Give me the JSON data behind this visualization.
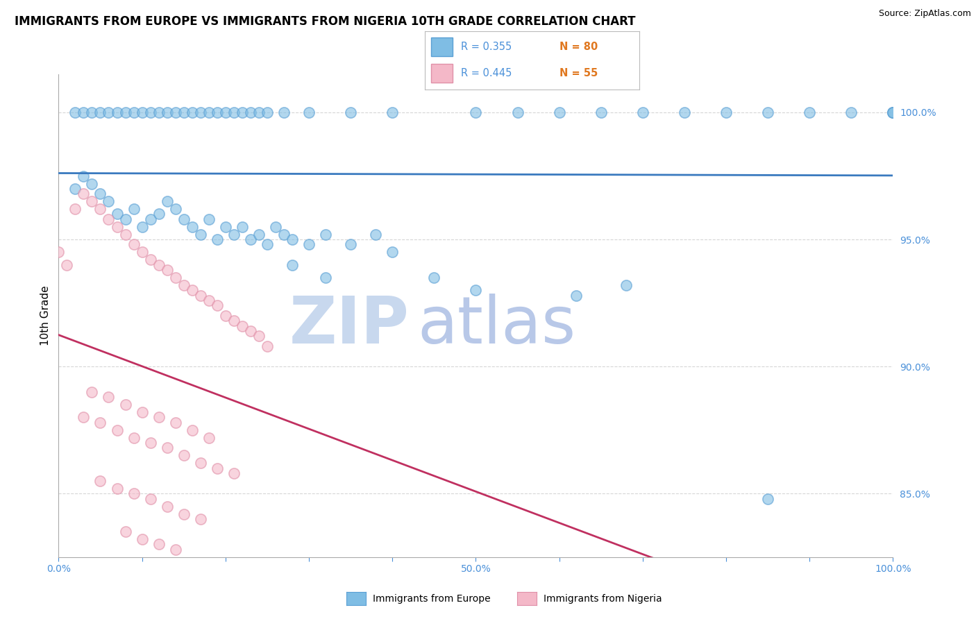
{
  "title": "IMMIGRANTS FROM EUROPE VS IMMIGRANTS FROM NIGERIA 10TH GRADE CORRELATION CHART",
  "source": "Source: ZipAtlas.com",
  "ylabel": "10th Grade",
  "right_ytick_labels": [
    "85.0%",
    "90.0%",
    "95.0%",
    "100.0%"
  ],
  "right_ytick_vals": [
    0.85,
    0.9,
    0.95,
    1.0
  ],
  "xlim": [
    0.0,
    1.0
  ],
  "ylim": [
    0.825,
    1.015
  ],
  "legend_blue_r": "R = 0.355",
  "legend_blue_n": "N = 80",
  "legend_pink_r": "R = 0.445",
  "legend_pink_n": "N = 55",
  "blue_color": "#7fbde4",
  "blue_edge_color": "#5a9fd4",
  "pink_color": "#f4b8c8",
  "pink_edge_color": "#e090a8",
  "trend_blue_color": "#3a7abf",
  "trend_pink_color": "#c03060",
  "watermark_zip": "ZIP",
  "watermark_atlas": "atlas",
  "watermark_color_zip": "#c8d8ee",
  "watermark_color_atlas": "#b8c8e8",
  "background_color": "#ffffff",
  "grid_color": "#cccccc",
  "axis_color": "#4a90d9",
  "orange_color": "#e07820",
  "title_fontsize": 12,
  "label_fontsize": 11,
  "tick_fontsize": 10,
  "blue_scatter_x": [
    0.02,
    0.03,
    0.04,
    0.05,
    0.06,
    0.07,
    0.08,
    0.09,
    0.1,
    0.11,
    0.12,
    0.13,
    0.14,
    0.15,
    0.16,
    0.17,
    0.18,
    0.19,
    0.2,
    0.21,
    0.22,
    0.23,
    0.24,
    0.25,
    0.26,
    0.27,
    0.28,
    0.3,
    0.32,
    0.35,
    0.38,
    0.4,
    0.02,
    0.03,
    0.04,
    0.05,
    0.06,
    0.07,
    0.08,
    0.09,
    0.1,
    0.11,
    0.12,
    0.13,
    0.14,
    0.15,
    0.16,
    0.17,
    0.18,
    0.19,
    0.2,
    0.21,
    0.22,
    0.23,
    0.24,
    0.25,
    0.27,
    0.3,
    0.35,
    0.4,
    0.5,
    0.55,
    0.6,
    0.65,
    0.7,
    0.75,
    0.8,
    0.85,
    0.9,
    0.95,
    1.0,
    1.0,
    1.0,
    0.28,
    0.32,
    0.45,
    0.5,
    0.62,
    0.68,
    0.85
  ],
  "blue_scatter_y": [
    0.97,
    0.975,
    0.972,
    0.968,
    0.965,
    0.96,
    0.958,
    0.962,
    0.955,
    0.958,
    0.96,
    0.965,
    0.962,
    0.958,
    0.955,
    0.952,
    0.958,
    0.95,
    0.955,
    0.952,
    0.955,
    0.95,
    0.952,
    0.948,
    0.955,
    0.952,
    0.95,
    0.948,
    0.952,
    0.948,
    0.952,
    0.945,
    1.0,
    1.0,
    1.0,
    1.0,
    1.0,
    1.0,
    1.0,
    1.0,
    1.0,
    1.0,
    1.0,
    1.0,
    1.0,
    1.0,
    1.0,
    1.0,
    1.0,
    1.0,
    1.0,
    1.0,
    1.0,
    1.0,
    1.0,
    1.0,
    1.0,
    1.0,
    1.0,
    1.0,
    1.0,
    1.0,
    1.0,
    1.0,
    1.0,
    1.0,
    1.0,
    1.0,
    1.0,
    1.0,
    1.0,
    1.0,
    1.0,
    0.94,
    0.935,
    0.935,
    0.93,
    0.928,
    0.932,
    0.848
  ],
  "pink_scatter_x": [
    0.0,
    0.01,
    0.02,
    0.03,
    0.04,
    0.05,
    0.06,
    0.07,
    0.08,
    0.09,
    0.1,
    0.11,
    0.12,
    0.13,
    0.14,
    0.15,
    0.16,
    0.17,
    0.18,
    0.19,
    0.2,
    0.21,
    0.22,
    0.23,
    0.24,
    0.25,
    0.03,
    0.05,
    0.07,
    0.09,
    0.11,
    0.13,
    0.15,
    0.17,
    0.19,
    0.21,
    0.05,
    0.07,
    0.09,
    0.11,
    0.13,
    0.15,
    0.17,
    0.08,
    0.1,
    0.12,
    0.14,
    0.04,
    0.06,
    0.08,
    0.1,
    0.12,
    0.14,
    0.16,
    0.18
  ],
  "pink_scatter_y": [
    0.945,
    0.94,
    0.962,
    0.968,
    0.965,
    0.962,
    0.958,
    0.955,
    0.952,
    0.948,
    0.945,
    0.942,
    0.94,
    0.938,
    0.935,
    0.932,
    0.93,
    0.928,
    0.926,
    0.924,
    0.92,
    0.918,
    0.916,
    0.914,
    0.912,
    0.908,
    0.88,
    0.878,
    0.875,
    0.872,
    0.87,
    0.868,
    0.865,
    0.862,
    0.86,
    0.858,
    0.855,
    0.852,
    0.85,
    0.848,
    0.845,
    0.842,
    0.84,
    0.835,
    0.832,
    0.83,
    0.828,
    0.89,
    0.888,
    0.885,
    0.882,
    0.88,
    0.878,
    0.875,
    0.872
  ]
}
